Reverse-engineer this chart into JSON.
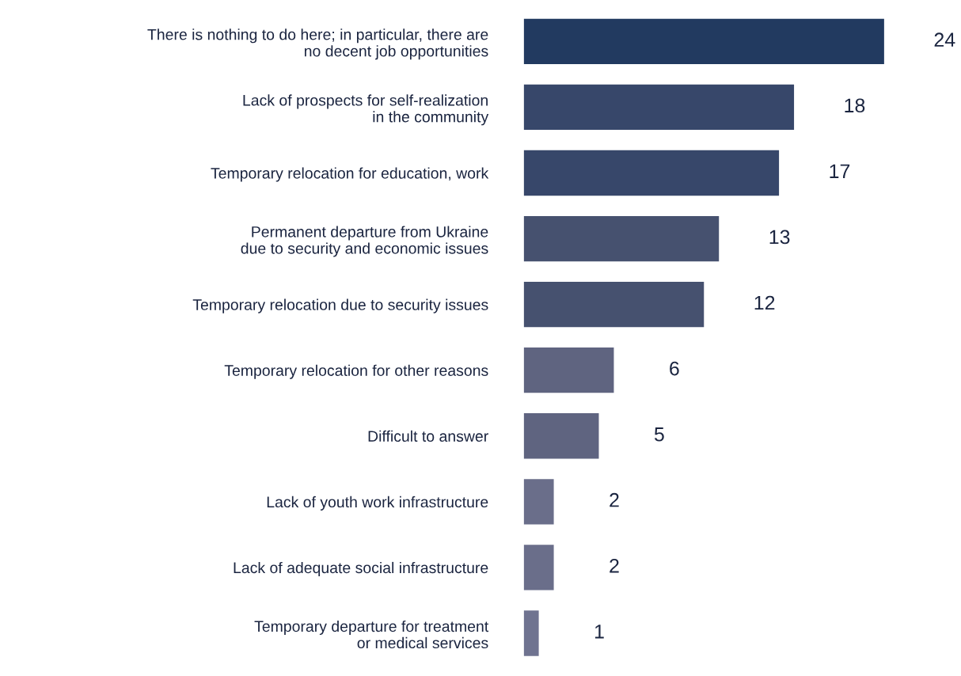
{
  "chart_data": {
    "type": "bar",
    "orientation": "horizontal",
    "data_labels": true,
    "grid": false,
    "categories": [
      "There is nothing to do here; in particular, there are\nno decent job opportunities",
      "Lack of prospects for self-realization\nin the community",
      "Temporary relocation for education, work",
      "Permanent departure from Ukraine\ndue to security and economic issues",
      "Temporary relocation due to security issues",
      "Temporary relocation for other reasons",
      "Difficult to answer",
      "Lack of youth work infrastructure",
      "Lack of adequate social infrastructure",
      "Temporary departure for treatment\nor medical services"
    ],
    "values": [
      24,
      18,
      17,
      13,
      12,
      6,
      5,
      2,
      2,
      1
    ],
    "colors": [
      "#223a60",
      "#37476a",
      "#37476a",
      "#46516f",
      "#46516f",
      "#5f6480",
      "#5f6480",
      "#6a6e8a",
      "#6a6e8a",
      "#6f7390"
    ]
  }
}
